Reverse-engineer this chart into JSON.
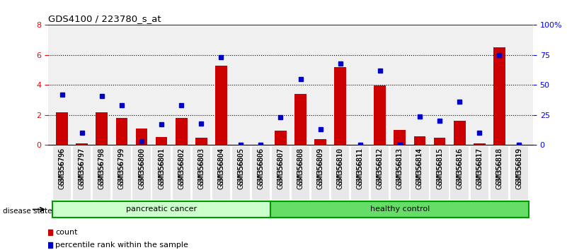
{
  "title": "GDS4100 / 223780_s_at",
  "samples": [
    "GSM356796",
    "GSM356797",
    "GSM356798",
    "GSM356799",
    "GSM356800",
    "GSM356801",
    "GSM356802",
    "GSM356803",
    "GSM356804",
    "GSM356805",
    "GSM356806",
    "GSM356807",
    "GSM356808",
    "GSM356809",
    "GSM356810",
    "GSM356811",
    "GSM356812",
    "GSM356813",
    "GSM356814",
    "GSM356815",
    "GSM356816",
    "GSM356817",
    "GSM356818",
    "GSM356819"
  ],
  "counts": [
    2.2,
    0.1,
    2.2,
    1.8,
    1.1,
    0.55,
    1.8,
    0.5,
    5.3,
    0.0,
    0.0,
    0.95,
    3.4,
    0.4,
    5.2,
    0.0,
    3.95,
    1.0,
    0.6,
    0.5,
    1.6,
    0.1,
    6.5,
    0.0
  ],
  "percentile_ranks": [
    42,
    10,
    41,
    33,
    3,
    17,
    33,
    18,
    73,
    0,
    0,
    23,
    55,
    13,
    68,
    0,
    62,
    0,
    24,
    20,
    36,
    10,
    75,
    0
  ],
  "group_labels": [
    "pancreatic cancer",
    "healthy control"
  ],
  "pancreatic_range": [
    0,
    11
  ],
  "healthy_range": [
    11,
    23
  ],
  "bar_color": "#CC0000",
  "dot_color": "#0000CC",
  "ylim_left": [
    0,
    8
  ],
  "ylim_right": [
    0,
    100
  ],
  "yticks_left": [
    0,
    2,
    4,
    6,
    8
  ],
  "yticks_right": [
    0,
    25,
    50,
    75,
    100
  ],
  "ytick_labels_right": [
    "0",
    "25",
    "50",
    "75",
    "100%"
  ],
  "bg_color": "#F0F0F0",
  "gridline_y": [
    2,
    4,
    6
  ],
  "legend_items": [
    "count",
    "percentile rank within the sample"
  ],
  "legend_colors": [
    "#CC0000",
    "#0000CC"
  ],
  "pc_facecolor": "#CCFFCC",
  "hc_facecolor": "#66DD66",
  "group_edgecolor": "#009900"
}
